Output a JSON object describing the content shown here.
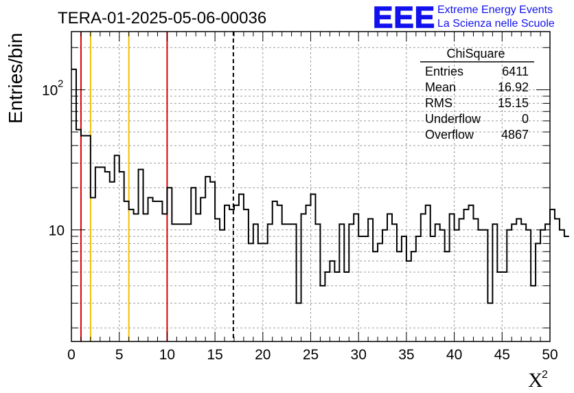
{
  "chart_data": {
    "type": "histogram",
    "title": "TERA-01-2025-05-06-00036",
    "xlabel": "X",
    "xlabel_superscript": "2",
    "ylabel": "Entries/bin",
    "xlim": [
      0,
      50
    ],
    "ylim": [
      1.6,
      260
    ],
    "yscale": "log",
    "grid": true,
    "x_ticks": [
      0,
      5,
      10,
      15,
      20,
      25,
      30,
      35,
      40,
      45,
      50
    ],
    "y_tick_labels": [
      {
        "value": 10,
        "base": "10",
        "exp": ""
      },
      {
        "value": 100,
        "base": "10",
        "exp": "2"
      }
    ],
    "bin_width": 0.5,
    "bin_start": 0,
    "values": [
      140,
      52,
      47,
      47,
      17,
      28,
      28,
      26,
      22,
      34,
      26,
      16,
      14,
      13,
      27,
      13,
      17,
      16,
      16,
      13,
      20,
      11,
      11,
      11,
      11,
      20,
      13,
      17,
      24,
      22,
      12,
      10,
      15,
      14,
      15,
      18,
      14,
      8,
      11,
      8,
      8,
      11,
      16,
      15,
      11,
      11,
      11,
      3,
      13,
      15,
      18,
      11,
      4,
      5,
      6,
      5,
      11,
      5,
      11,
      13,
      9,
      9,
      12,
      7,
      8,
      10,
      13,
      11,
      7,
      9,
      6,
      7,
      9,
      13,
      15,
      9,
      11,
      10,
      7,
      13,
      10,
      12,
      14,
      15,
      12,
      10,
      10,
      3,
      11,
      5,
      5,
      10,
      11,
      12,
      11,
      10,
      4,
      8,
      10,
      11,
      14,
      12,
      10,
      9
    ],
    "vertical_lines": [
      {
        "x": 1,
        "color": "#dd0000",
        "style": "solid"
      },
      {
        "x": 2,
        "color": "#f0c000",
        "style": "solid"
      },
      {
        "x": 6,
        "color": "#f0c000",
        "style": "solid"
      },
      {
        "x": 10,
        "color": "#dd0000",
        "style": "solid"
      },
      {
        "x": 16.92,
        "color": "#000000",
        "style": "dashed"
      }
    ],
    "stats_box": {
      "name": "ChiSquare",
      "rows": [
        {
          "label": "Entries",
          "value": "6411"
        },
        {
          "label": "Mean",
          "value": "16.92"
        },
        {
          "label": "RMS",
          "value": "15.15"
        },
        {
          "label": "Underflow",
          "value": "0"
        },
        {
          "label": "Overflow",
          "value": "4867"
        }
      ]
    }
  },
  "logo": {
    "mark": "EEE",
    "line1": "Extreme Energy Events",
    "line2": "La Scienza nelle Scuole",
    "color": "#1111ee"
  }
}
